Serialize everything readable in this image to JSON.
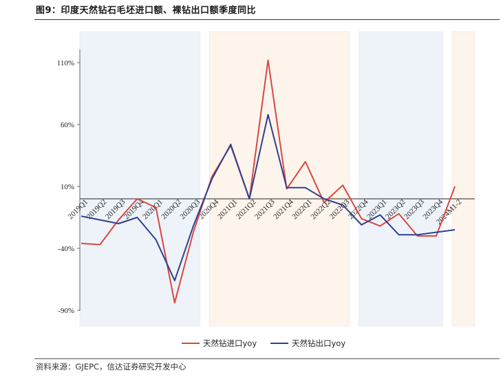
{
  "title": "图9：印度天然钻石毛坯进口额、裸钻出口额季度同比",
  "source": "资料来源：GJEPC，信达证券研究开发中心",
  "chart_data": {
    "type": "line",
    "categories": [
      "2019Q1",
      "2019Q2",
      "2019Q3",
      "2019Q4",
      "2020Q1",
      "2020Q2",
      "2020Q3",
      "2020Q4",
      "2021Q1",
      "2021Q2",
      "2021Q3",
      "2021Q4",
      "2022Q1",
      "2022Q2",
      "2022Q3",
      "2022Q4",
      "2023Q1",
      "2023Q2",
      "2023Q3",
      "2023Q4",
      "2024M1-2"
    ],
    "series": [
      {
        "name": "天然钻进口yoy",
        "color": "#d9463f",
        "values": [
          -36,
          -37,
          -17,
          0,
          -7,
          -84,
          -27,
          18,
          43,
          0,
          112,
          8,
          30,
          -3,
          11,
          -16,
          -22,
          -12,
          -30,
          -30,
          10
        ]
      },
      {
        "name": "天然钻出口yoy",
        "color": "#2f3f8f",
        "values": [
          -14,
          -17,
          -20,
          -15,
          -33,
          -66,
          -22,
          16,
          44,
          0,
          68,
          9,
          9,
          0,
          -5,
          -21,
          -13,
          -29,
          -29,
          -27,
          -25
        ]
      }
    ],
    "yticks": [
      110,
      60,
      10,
      -40,
      -90
    ],
    "ytick_labels": [
      "110%",
      "60%",
      "10%",
      "-40%",
      "-90%"
    ],
    "ylim": [
      -90,
      120
    ],
    "shaded_bands": [
      {
        "from": "2019Q1",
        "to": "2020Q3",
        "color": "#eef3fa"
      },
      {
        "from": "2020Q4",
        "to": "2022Q3",
        "color": "#fdf4ec"
      },
      {
        "from": "2022Q4",
        "to": "2023Q4",
        "color": "#eef3fa"
      },
      {
        "from": "2024M1-2",
        "to": "2024M1-2",
        "color": "#fdf4ec"
      }
    ],
    "legend": "bottom"
  }
}
